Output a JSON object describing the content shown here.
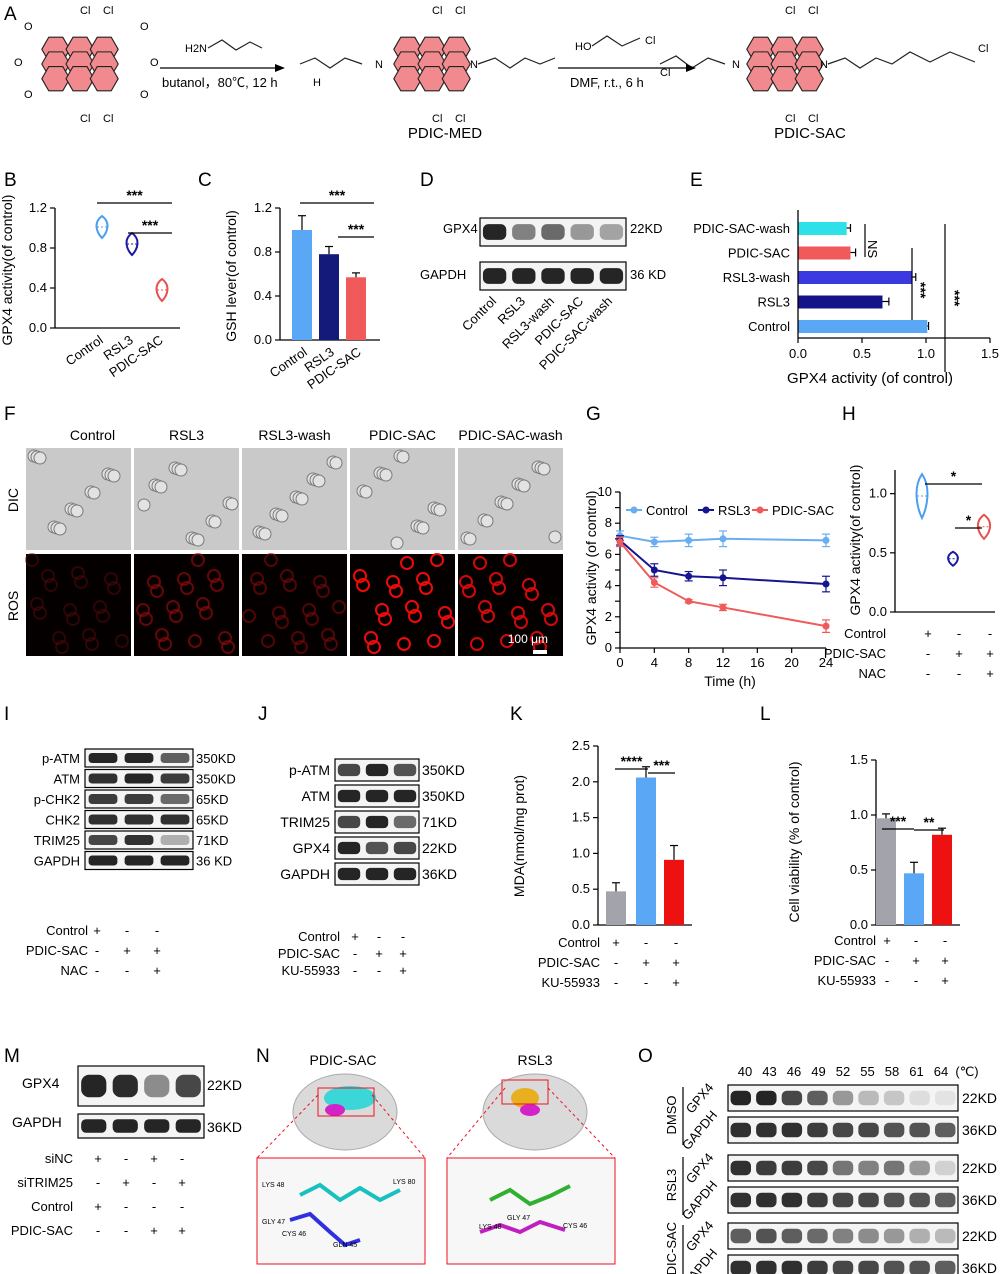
{
  "panels": {
    "A": {
      "letter": "A",
      "reagent1": "butanol，80℃, 12 h",
      "reagent2": "DMF, r.t., 6 h",
      "product1": "PDIC-MED",
      "product2": "PDIC-SAC",
      "atoms": {
        "cl": "Cl",
        "o": "O",
        "n": "N",
        "h": "H",
        "h2n": "H2N",
        "ho": "HO"
      }
    },
    "B": {
      "letter": "B"
    },
    "C": {
      "letter": "C"
    },
    "D": {
      "letter": "D",
      "bands": [
        "GPX4",
        "GAPDH"
      ],
      "sizes": [
        "22KD",
        "36 KD"
      ],
      "lanes": [
        "Control",
        "RSL3",
        "RSL3-wash",
        "PDIC-SAC",
        "PDIC-SAC-wash"
      ]
    },
    "E": {
      "letter": "E"
    },
    "F": {
      "letter": "F",
      "columns": [
        "Control",
        "RSL3",
        "RSL3-wash",
        "PDIC-SAC",
        "PDIC-SAC-wash"
      ],
      "rows": [
        "DIC",
        "ROS"
      ],
      "scale": "100 μm"
    },
    "G": {
      "letter": "G"
    },
    "H": {
      "letter": "H"
    },
    "I": {
      "letter": "I",
      "bands": [
        "p-ATM",
        "ATM",
        "p-CHK2",
        "CHK2",
        "TRIM25",
        "GAPDH"
      ],
      "sizes": [
        "350KD",
        "350KD",
        "65KD",
        "65KD",
        "71KD",
        "36 KD"
      ],
      "conditions": [
        {
          "name": "Control",
          "signs": [
            "+",
            "-",
            "-"
          ]
        },
        {
          "name": "PDIC-SAC",
          "signs": [
            "-",
            "+",
            "+"
          ]
        },
        {
          "name": "NAC",
          "signs": [
            "-",
            "-",
            "+"
          ]
        }
      ]
    },
    "J": {
      "letter": "J",
      "bands": [
        "p-ATM",
        "ATM",
        "TRIM25",
        "GPX4",
        "GAPDH"
      ],
      "sizes": [
        "350KD",
        "350KD",
        "71KD",
        "22KD",
        "36KD"
      ],
      "conditions": [
        {
          "name": "Control",
          "signs": [
            "+",
            "-",
            "-"
          ]
        },
        {
          "name": "PDIC-SAC",
          "signs": [
            "-",
            "+",
            "+"
          ]
        },
        {
          "name": "KU-55933",
          "signs": [
            "-",
            "-",
            "+"
          ]
        }
      ]
    },
    "K": {
      "letter": "K"
    },
    "L": {
      "letter": "L"
    },
    "M": {
      "letter": "M",
      "bands": [
        "GPX4",
        "GAPDH"
      ],
      "sizes": [
        "22KD",
        "36KD"
      ],
      "conditions": [
        {
          "name": "siNC",
          "signs": [
            "+",
            "-",
            "+",
            "-"
          ]
        },
        {
          "name": "siTRIM25",
          "signs": [
            "-",
            "+",
            "-",
            "+"
          ]
        },
        {
          "name": "Control",
          "signs": [
            "+",
            "-",
            "-",
            "-"
          ]
        },
        {
          "name": "PDIC-SAC",
          "signs": [
            "-",
            "-",
            "+",
            "+"
          ]
        }
      ]
    },
    "N": {
      "letter": "N",
      "titles": [
        "PDIC-SAC",
        "RSL3"
      ],
      "residues1": [
        "LYS 48",
        "GLY 47",
        "CYS 46",
        "GLN 45",
        "LYS 80"
      ],
      "residues2": [
        "LYS 48",
        "GLY 47",
        "CYS 46"
      ]
    },
    "O": {
      "letter": "O",
      "temps": [
        "40",
        "43",
        "46",
        "49",
        "52",
        "55",
        "58",
        "61",
        "64"
      ],
      "unit": "(℃)",
      "groups": [
        "DMSO",
        "RSL3",
        "PDIC-SAC"
      ],
      "bands": [
        "GPX4",
        "GAPDH"
      ],
      "sizes": [
        "22KD",
        "36KD"
      ]
    }
  },
  "chart_data": [
    {
      "id": "B",
      "type": "scatter",
      "ylabel": "GPX4 activity(of control)",
      "ylim": [
        0,
        1.2
      ],
      "yticks": [
        "0.0",
        "0.4",
        "0.8",
        "1.2"
      ],
      "categories": [
        "Control",
        "RSL3",
        "PDIC-SAC"
      ],
      "values": [
        1.01,
        0.84,
        0.38
      ],
      "colors": [
        "#4a9ff0",
        "#1a1aa0",
        "#e8504f"
      ],
      "sig": [
        "***",
        "***"
      ]
    },
    {
      "id": "C",
      "type": "bar",
      "ylabel": "GSH lever(of control)",
      "ylim": [
        0,
        1.2
      ],
      "yticks": [
        "0.0",
        "0.4",
        "0.8",
        "1.2"
      ],
      "categories": [
        "Control",
        "RSL3",
        "PDIC-SAC"
      ],
      "values": [
        1.0,
        0.78,
        0.57
      ],
      "errors": [
        0.13,
        0.07,
        0.04
      ],
      "colors": [
        "#5aa8f5",
        "#131a7a",
        "#f05a5a"
      ],
      "sig": [
        "***",
        "***"
      ]
    },
    {
      "id": "E",
      "type": "bar",
      "orientation": "horizontal",
      "xlabel": "GPX4 activity (of control)",
      "xlim": [
        0,
        1.5
      ],
      "xticks": [
        "0.0",
        "0.5",
        "1.0",
        "1.5"
      ],
      "categories": [
        "PDIC-SAC-wash",
        "PDIC-SAC",
        "RSL3-wash",
        "RSL3",
        "Control"
      ],
      "values": [
        0.38,
        0.41,
        0.89,
        0.66,
        1.01
      ],
      "errors": [
        0.03,
        0.04,
        0.03,
        0.05,
        0.01
      ],
      "colors": [
        "#2ee0e8",
        "#f05a5a",
        "#3a3ae0",
        "#14148a",
        "#5aa8f5"
      ],
      "sig": [
        "NS",
        "***",
        "***"
      ]
    },
    {
      "id": "G",
      "type": "line",
      "xlabel": "Time (h)",
      "ylabel": "GPX4 activity (of control)",
      "xlim": [
        0,
        24
      ],
      "ylim": [
        0,
        10
      ],
      "xticks": [
        "0",
        "4",
        "8",
        "12",
        "16",
        "20",
        "24"
      ],
      "yticks": [
        "0",
        "1",
        "2",
        "3",
        "4",
        "5",
        "6",
        "7",
        "8",
        "9",
        "10"
      ],
      "x": [
        0,
        4,
        8,
        12,
        24
      ],
      "series": [
        {
          "name": "Control",
          "values": [
            7.2,
            6.8,
            6.9,
            7.0,
            6.9
          ],
          "errors": [
            0.3,
            0.3,
            0.4,
            0.5,
            0.4
          ],
          "color": "#6aaef0"
        },
        {
          "name": "RSL3",
          "values": [
            6.9,
            5.0,
            4.6,
            4.5,
            4.1
          ],
          "errors": [
            0.3,
            0.4,
            0.3,
            0.5,
            0.5
          ],
          "color": "#15158f"
        },
        {
          "name": "PDIC-SAC",
          "values": [
            6.8,
            4.2,
            3.0,
            2.6,
            1.4
          ],
          "errors": [
            0.3,
            0.3,
            0.1,
            0.2,
            0.4
          ],
          "color": "#f05a5a"
        }
      ]
    },
    {
      "id": "H",
      "type": "scatter",
      "ylabel": "GPX4 activity(of control)",
      "ylim": [
        0,
        1.2
      ],
      "yticks": [
        "0.0",
        "0.5",
        "1.0"
      ],
      "values": [
        0.98,
        0.45,
        0.72
      ],
      "colors": [
        "#4a9ff0",
        "#1a1aa0",
        "#e8504f"
      ],
      "sig": [
        "*",
        "*"
      ],
      "conditions": [
        {
          "name": "Control",
          "signs": [
            "+",
            "-",
            "-"
          ]
        },
        {
          "name": "PDIC-SAC",
          "signs": [
            "-",
            "+",
            "+"
          ]
        },
        {
          "name": "NAC",
          "signs": [
            "-",
            "-",
            "+"
          ]
        }
      ]
    },
    {
      "id": "K",
      "type": "bar",
      "ylabel": "MDA(nmol/mg prot)",
      "ylim": [
        0,
        2.5
      ],
      "yticks": [
        "0.0",
        "0.5",
        "1.0",
        "1.5",
        "2.0",
        "2.5"
      ],
      "values": [
        0.47,
        2.06,
        0.91
      ],
      "errors": [
        0.12,
        0.15,
        0.2
      ],
      "colors": [
        "#a3a3ab",
        "#5aa8f5",
        "#ee1111"
      ],
      "sig": [
        "****",
        "***"
      ],
      "conditions": [
        {
          "name": "Control",
          "signs": [
            "+",
            "-",
            "-"
          ]
        },
        {
          "name": "PDIC-SAC",
          "signs": [
            "-",
            "+",
            "+"
          ]
        },
        {
          "name": "KU-55933",
          "signs": [
            "-",
            "-",
            "+"
          ]
        }
      ]
    },
    {
      "id": "L",
      "type": "bar",
      "ylabel": "Cell viability (% of control)",
      "ylim": [
        0,
        1.5
      ],
      "yticks": [
        "0.0",
        "0.5",
        "1.0",
        "1.5"
      ],
      "values": [
        0.97,
        0.47,
        0.82
      ],
      "errors": [
        0.04,
        0.1,
        0.06
      ],
      "colors": [
        "#a3a3ab",
        "#5aa8f5",
        "#ee1111"
      ],
      "sig": [
        "***",
        "**"
      ],
      "conditions": [
        {
          "name": "Control",
          "signs": [
            "+",
            "-",
            "-"
          ]
        },
        {
          "name": "PDIC-SAC",
          "signs": [
            "-",
            "+",
            "+"
          ]
        },
        {
          "name": "KU-55933",
          "signs": [
            "-",
            "-",
            "+"
          ]
        }
      ]
    }
  ]
}
